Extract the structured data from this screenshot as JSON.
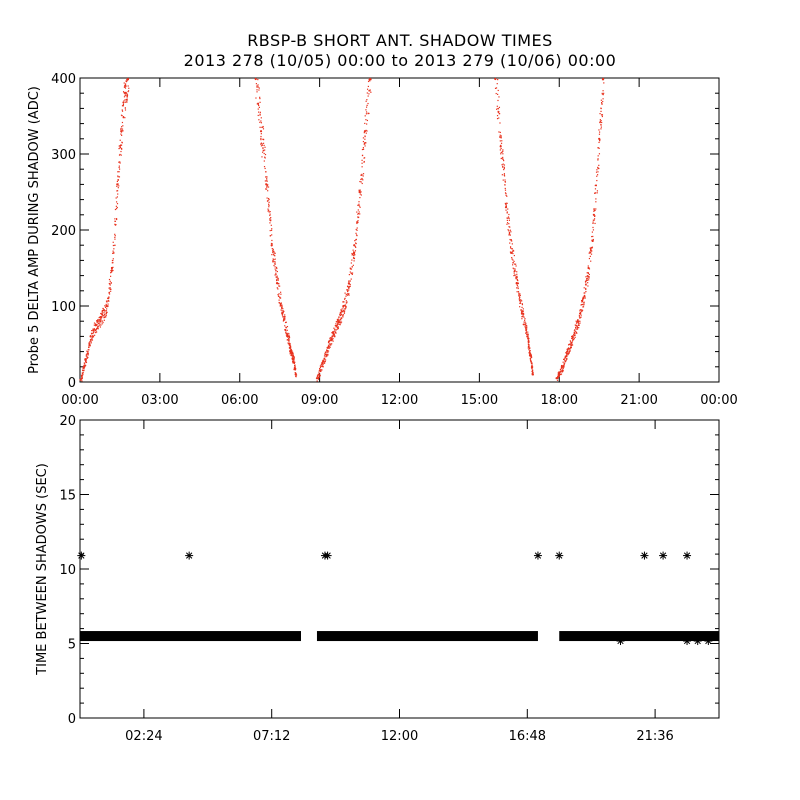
{
  "header": {
    "title_line1": "RBSP-B SHORT ANT. SHADOW TIMES",
    "title_line2": "2013 278 (10/05) 00:00 to 2013 279 (10/06) 00:00"
  },
  "colors": {
    "top_series": "#e8321e",
    "bottom_series": "#000000",
    "axes": "#000000"
  },
  "chart_data": [
    {
      "type": "scatter",
      "title": "",
      "ylabel": "Probe 5 DELTA AMP DURING SHADOW (ADC)",
      "xlabel": "",
      "xlim_hours": [
        0,
        24
      ],
      "ylim": [
        0,
        400
      ],
      "x_ticks": [
        "00:00",
        "03:00",
        "06:00",
        "09:00",
        "12:00",
        "15:00",
        "18:00",
        "21:00",
        "00:00"
      ],
      "y_ticks": [
        "0",
        "100",
        "200",
        "300",
        "400"
      ],
      "series": [
        {
          "marker": "dot",
          "segments": [
            {
              "x": [
                0.02,
                0.2,
                0.4,
                0.6,
                0.8,
                1.0,
                1.2,
                1.4,
                1.55,
                1.7,
                1.8
              ],
              "y": [
                3,
                30,
                60,
                75,
                85,
                100,
                150,
                260,
                330,
                390,
                410
              ]
            },
            {
              "x": [
                6.6,
                6.8,
                7.0,
                7.2,
                7.4,
                7.6,
                7.8,
                7.9,
                8.0,
                8.1
              ],
              "y": [
                400,
                330,
                260,
                180,
                130,
                90,
                60,
                40,
                30,
                10
              ]
            },
            {
              "x": [
                8.9,
                9.1,
                9.3,
                9.5,
                9.7,
                9.9,
                10.1,
                10.3,
                10.5,
                10.7,
                10.9
              ],
              "y": [
                5,
                25,
                45,
                65,
                80,
                100,
                130,
                180,
                250,
                330,
                410
              ]
            },
            {
              "x": [
                15.6,
                15.8,
                16.0,
                16.2,
                16.4,
                16.6,
                16.8,
                16.9,
                17.0
              ],
              "y": [
                400,
                310,
                230,
                170,
                130,
                90,
                60,
                35,
                10
              ]
            },
            {
              "x": [
                17.9,
                18.1,
                18.3,
                18.5,
                18.7,
                18.9,
                19.1,
                19.3,
                19.5,
                19.65
              ],
              "y": [
                5,
                20,
                40,
                60,
                80,
                110,
                150,
                220,
                320,
                410
              ]
            }
          ]
        }
      ]
    },
    {
      "type": "scatter",
      "title": "",
      "ylabel": "TIME BETWEEN SHADOWS (SEC)",
      "xlabel": "",
      "xlim_hours": [
        0,
        24
      ],
      "ylim": [
        0,
        20
      ],
      "x_ticks": [
        "02:24",
        "07:12",
        "12:00",
        "16:48",
        "21:36"
      ],
      "y_ticks": [
        "0",
        "5",
        "10",
        "15",
        "20"
      ],
      "series": [
        {
          "marker": "asterisk",
          "baseline_value": 5.5,
          "baseline_ranges_hours": [
            [
              0.0,
              8.3
            ],
            [
              8.9,
              17.2
            ],
            [
              18.0,
              24.0
            ]
          ],
          "outliers": {
            "x": [
              0.05,
              4.1,
              9.2,
              9.3,
              17.2,
              18.0,
              21.2,
              21.9,
              22.8
            ],
            "y": [
              10.9,
              10.9,
              10.9,
              10.9,
              10.9,
              10.9,
              10.9,
              10.9,
              10.9
            ]
          }
        }
      ]
    }
  ]
}
